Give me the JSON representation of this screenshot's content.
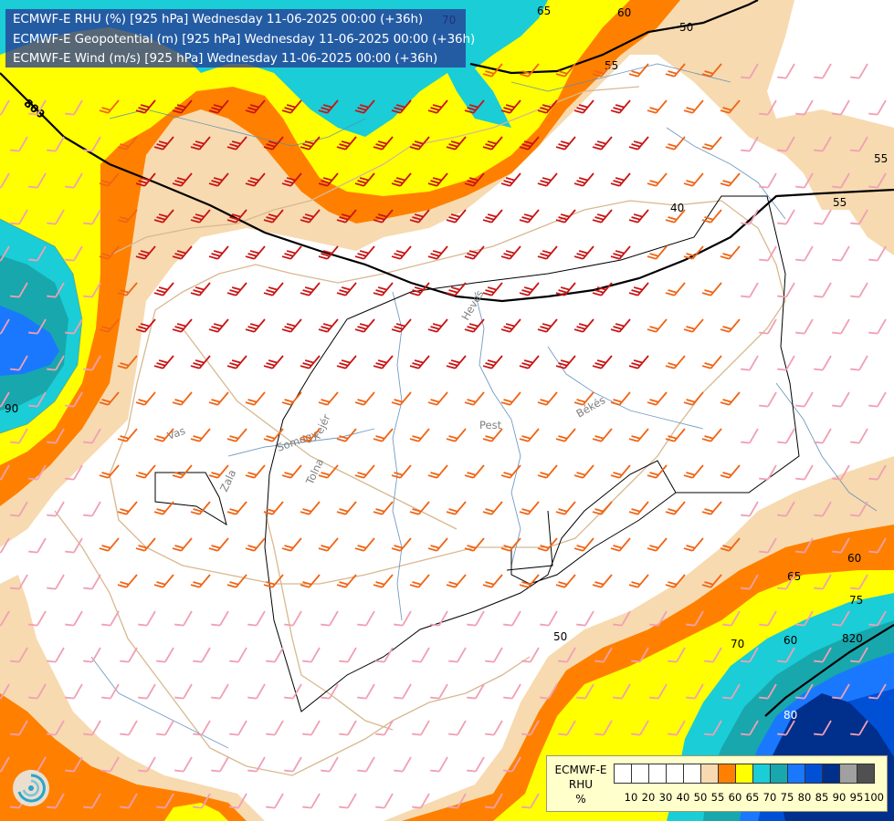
{
  "titles": [
    "ECMWF-E RHU (%) [925 hPa] Wednesday 11-06-2025 00:00 (+36h)",
    "ECMWF-E Geopotential (m) [925 hPa] Wednesday 11-06-2025 00:00 (+36h)",
    "ECMWF-E Wind (m/s) [925 hPa] Wednesday 11-06-2025 00:00 (+36h)"
  ],
  "legend": {
    "label_lines": [
      "ECMWF-E",
      "RHU",
      "%"
    ],
    "ticks": [
      "10",
      "20",
      "30",
      "40",
      "50",
      "55",
      "60",
      "65",
      "70",
      "75",
      "80",
      "85",
      "90",
      "95",
      "100"
    ],
    "colors": [
      "#ffffff",
      "#ffffff",
      "#ffffff",
      "#ffffff",
      "#ffffff",
      "#f7dab0",
      "#ff8000",
      "#ffff00",
      "#1acdd6",
      "#18a7ad",
      "#1a78ff",
      "#0050d6",
      "#002f8c",
      "#a0a0a0",
      "#505050"
    ]
  },
  "contour_labels": {
    "rhu": [
      "70",
      "65",
      "60",
      "55",
      "50",
      "40",
      "55",
      "55",
      "60",
      "65",
      "75",
      "70",
      "60",
      "50",
      "80",
      "90",
      "70",
      "65"
    ],
    "geopotential": [
      "800",
      "820"
    ]
  },
  "regions": [
    "Heves",
    "Pest",
    "Békés",
    "Fejér",
    "Vas",
    "Somogy",
    "Tolna",
    "Zala"
  ],
  "colors": {
    "rhu_55": "#f7dab0",
    "rhu_60": "#ff8000",
    "rhu_65": "#ffff00",
    "rhu_70": "#1acdd6",
    "rhu_75": "#18a7ad",
    "rhu_80": "#1a78ff",
    "rhu_85": "#0050d6",
    "rhu_90": "#002f8c",
    "title_bg": "#283c96",
    "legend_bg": "#ffffcc",
    "border": "#d8b890",
    "river": "#5a8ab8",
    "barb_red": "#c81414",
    "barb_orange": "#f06414",
    "barb_pink": "#f0a0b4"
  },
  "icons": [
    "wind-barb-icon",
    "logo-swirl-icon"
  ]
}
